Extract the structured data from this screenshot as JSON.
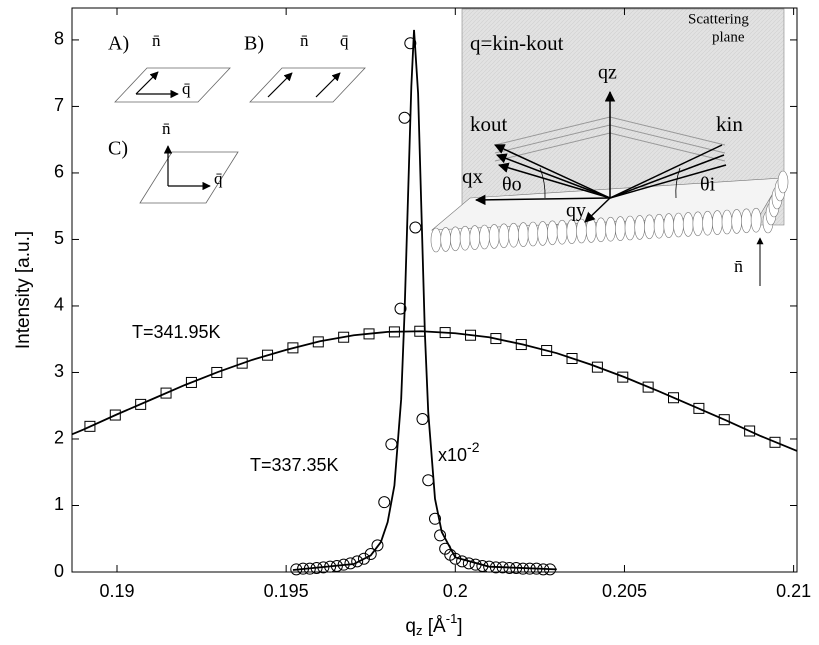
{
  "chart_data": {
    "type": "line",
    "ylabel": "Intensity [a.u.]",
    "xlabel": {
      "main": "q",
      "sub": "z",
      "unit": " [Å",
      "sup": "-1",
      "close": "]"
    },
    "xlim": [
      0.18867,
      0.2101
    ],
    "ylim": [
      0,
      8.48
    ],
    "xticks": [
      0.19,
      0.195,
      0.2,
      0.205,
      0.21
    ],
    "yticks": [
      0,
      1,
      2,
      3,
      4,
      5,
      6,
      7,
      8
    ],
    "grid": false,
    "annotations": {
      "t_high": "T=341.95K",
      "t_low": "T=337.35K",
      "scale": "x10",
      "scale_exp": "-2"
    },
    "series": [
      {
        "marker": "square",
        "color": "#000000",
        "x": [
          0.1892,
          0.18995,
          0.1907,
          0.19145,
          0.1922,
          0.19295,
          0.1937,
          0.19445,
          0.1952,
          0.19595,
          0.1967,
          0.19745,
          0.1982,
          0.19895,
          0.1997,
          0.20045,
          0.2012,
          0.20195,
          0.2027,
          0.20345,
          0.2042,
          0.20495,
          0.2057,
          0.20645,
          0.2072,
          0.20795,
          0.2087,
          0.20945
        ],
        "values": [
          2.19,
          2.36,
          2.52,
          2.69,
          2.85,
          3.0,
          3.14,
          3.26,
          3.37,
          3.46,
          3.53,
          3.58,
          3.61,
          3.62,
          3.6,
          3.56,
          3.51,
          3.42,
          3.33,
          3.21,
          3.08,
          2.93,
          2.78,
          2.62,
          2.46,
          2.29,
          2.12,
          1.95
        ]
      },
      {
        "marker": "none",
        "color": "#000000",
        "x": [
          0.18867,
          0.189,
          0.19,
          0.191,
          0.192,
          0.193,
          0.194,
          0.195,
          0.196,
          0.197,
          0.198,
          0.199,
          0.2,
          0.201,
          0.202,
          0.203,
          0.204,
          0.205,
          0.206,
          0.207,
          0.208,
          0.209,
          0.2101
        ],
        "values": [
          2.07,
          2.14,
          2.37,
          2.59,
          2.81,
          3.01,
          3.19,
          3.34,
          3.47,
          3.56,
          3.61,
          3.62,
          3.59,
          3.53,
          3.42,
          3.29,
          3.12,
          2.93,
          2.72,
          2.5,
          2.28,
          2.05,
          1.82
        ]
      },
      {
        "marker": "circle",
        "color": "#000000",
        "x": [
          0.1953,
          0.1955,
          0.1957,
          0.1959,
          0.1961,
          0.1963,
          0.1965,
          0.1967,
          0.1969,
          0.1971,
          0.1973,
          0.1975,
          0.1977,
          0.1979,
          0.19811,
          0.19838,
          0.1985,
          0.19867,
          0.19882,
          0.19903,
          0.1992,
          0.1994,
          0.19955,
          0.1997,
          0.19985,
          0.2,
          0.2002,
          0.2004,
          0.2006,
          0.2008,
          0.201,
          0.2012,
          0.2014,
          0.2016,
          0.2018,
          0.202,
          0.2022,
          0.2024,
          0.2026,
          0.2028
        ],
        "values": [
          0.04,
          0.05,
          0.05,
          0.06,
          0.07,
          0.08,
          0.09,
          0.11,
          0.13,
          0.16,
          0.2,
          0.27,
          0.4,
          1.05,
          1.92,
          3.96,
          6.83,
          7.95,
          5.18,
          2.3,
          1.38,
          0.8,
          0.55,
          0.35,
          0.26,
          0.2,
          0.16,
          0.13,
          0.11,
          0.09,
          0.08,
          0.07,
          0.07,
          0.06,
          0.06,
          0.05,
          0.05,
          0.05,
          0.04,
          0.04
        ]
      },
      {
        "marker": "none",
        "color": "#000000",
        "x": [
          0.1952,
          0.197,
          0.1975,
          0.1978,
          0.198,
          0.1982,
          0.1984,
          0.1985,
          0.1986,
          0.1987,
          0.19878,
          0.1989,
          0.199,
          0.1991,
          0.1992,
          0.1994,
          0.1996,
          0.2,
          0.201,
          0.203
        ],
        "values": [
          0.03,
          0.12,
          0.25,
          0.45,
          0.75,
          1.3,
          2.6,
          3.9,
          5.6,
          7.3,
          8.15,
          7.2,
          5.4,
          3.6,
          2.4,
          1.1,
          0.6,
          0.22,
          0.08,
          0.04
        ]
      }
    ]
  },
  "inset": {
    "a": "A)",
    "b": "B)",
    "c": "C)",
    "n": "n̄",
    "q": "q̄",
    "formula": "q=kin-kout",
    "plane1": "Scattering",
    "plane2": "plane",
    "qz": "qz",
    "kout": "kout",
    "kin": "kin",
    "qx": "qx",
    "qy": "qy",
    "theta_o": "θo",
    "theta_i": "θi"
  }
}
